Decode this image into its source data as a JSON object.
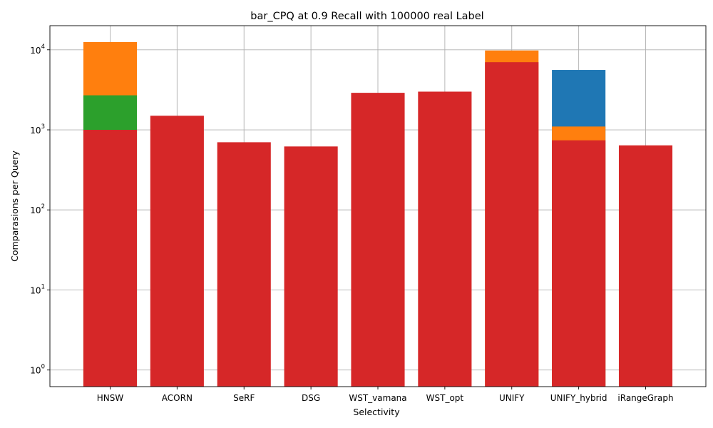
{
  "chart_data": {
    "type": "bar",
    "title": "bar_CPQ at 0.9 Recall with 100000 real Label",
    "xlabel": "Selectivity",
    "ylabel": "Comparasions per Query",
    "yscale": "log",
    "ylim": [
      0.62,
      20000
    ],
    "grid": true,
    "yticks": [
      {
        "base": "10",
        "exp": "0",
        "value": 1
      },
      {
        "base": "10",
        "exp": "1",
        "value": 10
      },
      {
        "base": "10",
        "exp": "2",
        "value": 100
      },
      {
        "base": "10",
        "exp": "3",
        "value": 1000
      },
      {
        "base": "10",
        "exp": "4",
        "value": 10000
      }
    ],
    "categories": [
      "HNSW",
      "ACORN",
      "SeRF",
      "DSG",
      "WST_vamana",
      "WST_opt",
      "UNIFY",
      "UNIFY_hybrid",
      "iRangeGraph"
    ],
    "series": [
      {
        "color": "#1f77b4",
        "values": [
          null,
          null,
          null,
          null,
          null,
          null,
          null,
          5600,
          null
        ]
      },
      {
        "color": "#ff7f0e",
        "values": [
          12500,
          null,
          null,
          null,
          null,
          null,
          9800,
          1100,
          null
        ]
      },
      {
        "color": "#2ca02c",
        "values": [
          2700,
          null,
          null,
          null,
          null,
          null,
          null,
          null,
          null
        ]
      },
      {
        "color": "#d62728",
        "values": [
          1000,
          1500,
          700,
          620,
          2900,
          3000,
          7000,
          740,
          640
        ]
      }
    ]
  }
}
